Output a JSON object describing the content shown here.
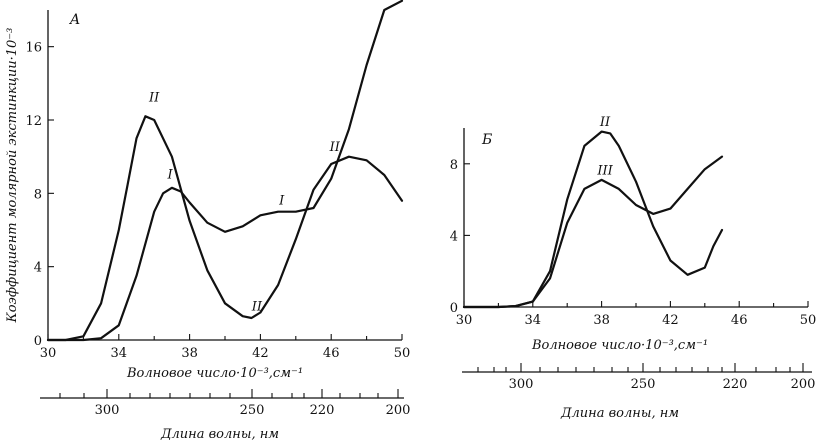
{
  "chart_data": [
    {
      "type": "line",
      "panel_label": "A",
      "ylabel": "Коэффициент молярной экстинкции·10⁻³",
      "xlabel": "Волновое число·10⁻³,см⁻¹",
      "xlim": [
        30,
        50
      ],
      "ylim": [
        0,
        18
      ],
      "x_ticks": [
        30,
        34,
        38,
        42,
        46,
        50
      ],
      "y_ticks": [
        0,
        4,
        8,
        12,
        16
      ],
      "y_tick_labels": [
        "0",
        "4",
        "8",
        "12",
        "16"
      ],
      "series": [
        {
          "name": "I",
          "x": [
            30,
            32,
            33,
            34,
            35,
            36,
            36.5,
            37,
            37.5,
            38,
            39,
            40,
            41,
            42,
            43,
            44,
            45,
            46,
            47,
            48,
            49,
            50
          ],
          "y": [
            0,
            0,
            0.1,
            0.8,
            3.5,
            7.0,
            8.0,
            8.3,
            8.1,
            7.5,
            6.4,
            5.9,
            6.2,
            6.8,
            7.0,
            7.0,
            7.2,
            8.8,
            11.5,
            15.0,
            18.0,
            18.5
          ]
        },
        {
          "name": "II",
          "x": [
            30,
            31,
            32,
            33,
            34,
            34.5,
            35,
            35.5,
            36,
            37,
            38,
            39,
            40,
            41,
            41.5,
            42,
            43,
            44,
            45,
            46,
            47,
            48,
            49,
            50
          ],
          "y": [
            0,
            0,
            0.2,
            2.0,
            6.0,
            8.5,
            11.0,
            12.2,
            12.0,
            10.0,
            6.5,
            3.8,
            2.0,
            1.3,
            1.2,
            1.5,
            3.0,
            5.5,
            8.2,
            9.6,
            10.0,
            9.8,
            9.0,
            7.6
          ]
        }
      ],
      "curve_labels": [
        {
          "text": "II",
          "x": 36.0,
          "y": 13.0
        },
        {
          "text": "I",
          "x": 36.9,
          "y": 8.8
        },
        {
          "text": "I",
          "x": 43.2,
          "y": 7.4
        },
        {
          "text": "II",
          "x": 41.8,
          "y": 1.6
        },
        {
          "text": "II",
          "x": 46.2,
          "y": 10.3
        }
      ],
      "secondary_axis": {
        "label": "Длина волны, нм",
        "ticks": [
          300,
          250,
          220,
          200
        ]
      }
    },
    {
      "type": "line",
      "panel_label": "Б",
      "xlabel": "Волновое число·10⁻³,см⁻¹",
      "xlim": [
        30,
        50
      ],
      "ylim": [
        0,
        10
      ],
      "x_ticks": [
        30,
        34,
        38,
        42,
        46,
        50
      ],
      "y_ticks": [
        0,
        4,
        8
      ],
      "y_tick_labels": [
        "0",
        "4",
        "8"
      ],
      "series": [
        {
          "name": "II",
          "x": [
            30,
            32,
            33,
            34,
            35,
            36,
            37,
            38,
            38.5,
            39,
            40,
            41,
            42,
            43,
            44,
            44.5,
            45
          ],
          "y": [
            0,
            0,
            0.05,
            0.3,
            2.0,
            6.0,
            9.0,
            9.8,
            9.7,
            9.0,
            7.0,
            4.5,
            2.6,
            1.8,
            2.2,
            3.4,
            4.3
          ]
        },
        {
          "name": "III",
          "x": [
            30,
            32,
            33,
            34,
            35,
            36,
            37,
            38,
            39,
            40,
            41,
            42,
            43,
            44,
            45
          ],
          "y": [
            0,
            0,
            0.05,
            0.3,
            1.6,
            4.7,
            6.6,
            7.1,
            6.6,
            5.7,
            5.2,
            5.5,
            6.6,
            7.7,
            8.4
          ]
        }
      ],
      "curve_labels": [
        {
          "text": "II",
          "x": 38.2,
          "y": 10.1
        },
        {
          "text": "III",
          "x": 38.2,
          "y": 7.4
        }
      ],
      "secondary_axis": {
        "label": "Длина волны, нм",
        "ticks": [
          300,
          250,
          220,
          200
        ]
      }
    }
  ]
}
